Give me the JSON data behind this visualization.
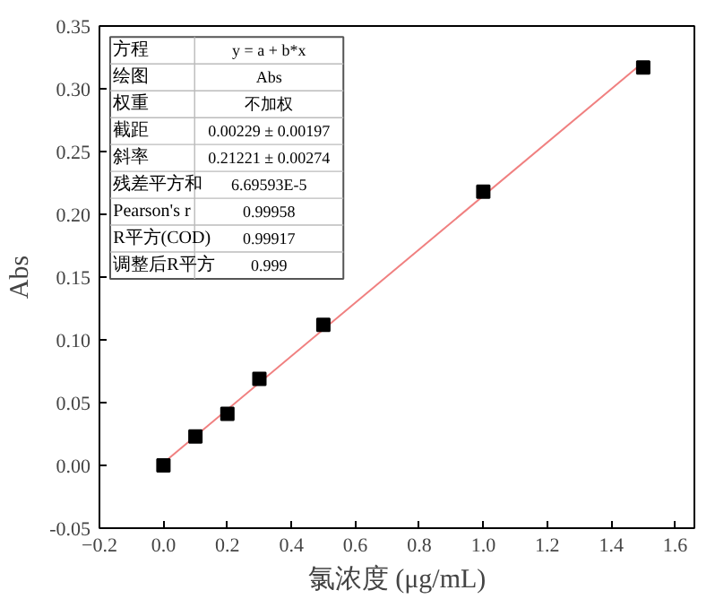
{
  "chart_data": {
    "type": "scatter",
    "xlabel": "氯浓度 (μg/mL)",
    "ylabel": "Abs",
    "x": [
      0,
      0.1,
      0.2,
      0.3,
      0.5,
      1.0,
      1.5
    ],
    "series": [
      {
        "color": "#000000",
        "marker": "square",
        "values": [
          0,
          0.023,
          0.041,
          0.069,
          0.112,
          0.218,
          0.317
        ]
      },
      {
        "type": "line",
        "color": "#f08080",
        "x": [
          0,
          1.5
        ],
        "values": [
          0.002,
          0.321
        ],
        "marker": "none"
      }
    ],
    "xlim": [
      -0.2,
      1.66
    ],
    "ylim": [
      -0.05,
      0.35
    ],
    "xticks": [
      -0.2,
      {
        "value": 0,
        "label": "0.0"
      },
      0.2,
      0.4,
      0.6,
      0.8,
      {
        "value": 1,
        "label": "1.0"
      },
      1.2,
      1.4,
      1.6
    ],
    "yticks": [
      {
        "value": -0.05,
        "label": "-0.05"
      },
      {
        "value": 0,
        "label": "0.00"
      },
      {
        "value": 0.05,
        "label": "0.05"
      },
      {
        "value": 0.1,
        "label": "0.10"
      },
      {
        "value": 0.15,
        "label": "0.15"
      },
      {
        "value": 0.2,
        "label": "0.20"
      },
      {
        "value": 0.25,
        "label": "0.25"
      },
      {
        "value": 0.3,
        "label": "0.30"
      },
      {
        "value": 0.35,
        "label": "0.35"
      }
    ],
    "annotations": [
      "方程",
      "y = a + b*x",
      "绘图",
      "Abs",
      "权重",
      "不加权",
      "截距",
      "0.00229 ± 0.00197",
      "斜率",
      "0.21221 ± 0.00274",
      "残差平方和",
      "6.69593E-5",
      "Pearson's r",
      "0.99958",
      "R平方(COD)",
      "0.99917",
      "调整后R平方",
      "0.999"
    ],
    "grid": false
  }
}
